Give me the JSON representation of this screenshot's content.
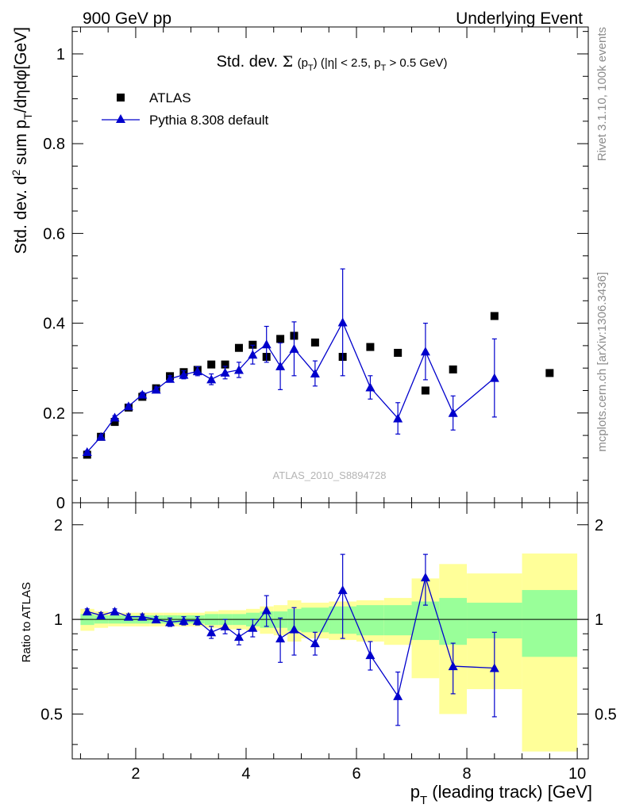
{
  "header": {
    "left": "900 GeV pp",
    "right": "Underlying Event"
  },
  "side_labels": {
    "rivet": "Rivet 3.1.10,  100k events",
    "mcplots": "mcplots.cern.ch [arXiv:1306.3436]"
  },
  "watermark": "ATLAS_2010_S8894728",
  "chart_data": [
    {
      "type": "scatter",
      "panel": "main",
      "title": "Std. dev. Σ(p_T) (|η| < 2.5, p_T > 0.5 GeV)",
      "title_parts": {
        "prefix": "Std. dev.",
        "sigma": "Σ",
        "p": "p",
        "T": "T",
        "cut_open": ") (|η| < 2.5, p",
        "cut_close": " > 0.5 GeV)"
      },
      "ylabel": "Std. dev. d² sum p_T/dηdφ[GeV]",
      "ylabel_parts": {
        "a": "Std. dev. d",
        "sup": "2",
        "b": " sum p",
        "sub": "T",
        "c": "/dηdφ[GeV]"
      },
      "ylim": [
        0,
        1.06
      ],
      "yticks": [
        "0",
        "0.2",
        "0.4",
        "0.6",
        "0.8",
        "1"
      ],
      "legend_position": "top-left",
      "series": [
        {
          "name": "ATLAS",
          "marker": "square",
          "color": "#000000",
          "x": [
            1.12,
            1.37,
            1.62,
            1.87,
            2.12,
            2.37,
            2.62,
            2.87,
            3.12,
            3.37,
            3.62,
            3.87,
            4.12,
            4.37,
            4.62,
            4.87,
            5.25,
            5.75,
            6.25,
            6.75,
            7.25,
            7.75,
            8.5,
            9.5
          ],
          "y": [
            0.107,
            0.147,
            0.18,
            0.212,
            0.236,
            0.255,
            0.282,
            0.291,
            0.296,
            0.308,
            0.308,
            0.345,
            0.352,
            0.325,
            0.365,
            0.372,
            0.357,
            0.325,
            0.347,
            0.334,
            0.25,
            0.297,
            0.416,
            0.289
          ]
        },
        {
          "name": "Pythia 8.308 default",
          "marker": "triangle",
          "color": "#0000cc",
          "x": [
            1.12,
            1.37,
            1.62,
            1.87,
            2.12,
            2.37,
            2.62,
            2.87,
            3.12,
            3.37,
            3.62,
            3.87,
            4.12,
            4.37,
            4.62,
            4.87,
            5.25,
            5.75,
            6.25,
            6.75,
            7.25,
            7.75,
            8.5
          ],
          "y": [
            0.113,
            0.147,
            0.19,
            0.215,
            0.241,
            0.252,
            0.276,
            0.285,
            0.293,
            0.275,
            0.29,
            0.296,
            0.33,
            0.353,
            0.304,
            0.343,
            0.288,
            0.402,
            0.257,
            0.188,
            0.337,
            0.2,
            0.278
          ],
          "yerr": [
            0.003,
            0.004,
            0.004,
            0.005,
            0.005,
            0.006,
            0.007,
            0.009,
            0.01,
            0.012,
            0.014,
            0.017,
            0.021,
            0.04,
            0.052,
            0.06,
            0.028,
            0.119,
            0.026,
            0.035,
            0.063,
            0.038,
            0.087
          ]
        }
      ]
    },
    {
      "type": "scatter",
      "panel": "ratio",
      "ylabel": "Ratio to ATLAS",
      "xlabel": "p_T (leading track) [GeV]",
      "xlabel_parts": {
        "a": "p",
        "sub": "T",
        "b": " (leading track) [GeV]"
      },
      "xlim": [
        0.85,
        10.2
      ],
      "xticks": [
        "2",
        "4",
        "6",
        "8",
        "10"
      ],
      "ylim": [
        0.36,
        2.35
      ],
      "yticks": [
        "0.5",
        "1",
        "2"
      ],
      "log_y": true,
      "reference_line": 1,
      "band_colors": {
        "stat": "#99ff99",
        "total": "#ffff99"
      },
      "bands": {
        "edges": [
          1.0,
          1.25,
          1.5,
          1.75,
          2.0,
          2.25,
          2.5,
          2.75,
          3.0,
          3.25,
          3.5,
          3.75,
          4.0,
          4.25,
          4.5,
          4.75,
          5.0,
          5.5,
          6.0,
          6.5,
          7.0,
          7.5,
          8.0,
          9.0,
          10.0
        ],
        "stat": [
          0.04,
          0.03,
          0.03,
          0.03,
          0.03,
          0.03,
          0.03,
          0.03,
          0.03,
          0.04,
          0.04,
          0.04,
          0.05,
          0.06,
          0.06,
          0.08,
          0.09,
          0.1,
          0.11,
          0.11,
          0.14,
          0.17,
          0.13,
          0.24
        ],
        "total": [
          0.08,
          0.06,
          0.05,
          0.05,
          0.05,
          0.05,
          0.05,
          0.05,
          0.05,
          0.06,
          0.07,
          0.07,
          0.08,
          0.1,
          0.11,
          0.15,
          0.13,
          0.14,
          0.15,
          0.17,
          0.35,
          0.5,
          0.4,
          0.62
        ]
      },
      "series": [
        {
          "name": "Pythia 8.308 default",
          "marker": "triangle",
          "color": "#0000cc",
          "x": [
            1.12,
            1.37,
            1.62,
            1.87,
            2.12,
            2.37,
            2.62,
            2.87,
            3.12,
            3.37,
            3.62,
            3.87,
            4.12,
            4.37,
            4.62,
            4.87,
            5.25,
            5.75,
            6.25,
            6.75,
            7.25,
            7.75,
            8.5
          ],
          "y": [
            1.06,
            1.03,
            1.06,
            1.02,
            1.02,
            1.0,
            0.98,
            0.99,
            0.99,
            0.91,
            0.95,
            0.88,
            0.94,
            1.07,
            0.87,
            0.93,
            0.84,
            1.24,
            0.77,
            0.57,
            1.36,
            0.71,
            0.7
          ],
          "yerr": [
            0.02,
            0.02,
            0.02,
            0.02,
            0.02,
            0.02,
            0.03,
            0.03,
            0.03,
            0.04,
            0.05,
            0.05,
            0.06,
            0.12,
            0.14,
            0.16,
            0.07,
            0.37,
            0.08,
            0.11,
            0.25,
            0.13,
            0.21
          ]
        }
      ]
    }
  ]
}
